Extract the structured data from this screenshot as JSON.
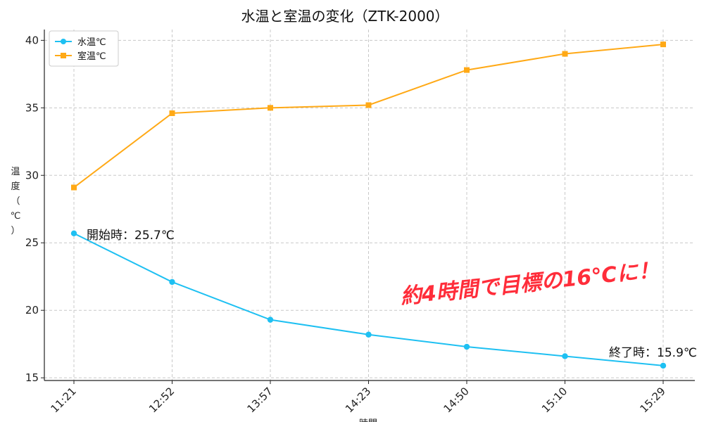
{
  "chart_data": {
    "type": "line",
    "title": "水温と室温の変化（ZTK-2000）",
    "xlabel": "時間",
    "ylabel": "温度（℃）",
    "categories": [
      "11:21",
      "12:52",
      "13:57",
      "14:23",
      "14:50",
      "15:10",
      "15:29"
    ],
    "ylim": [
      14.8,
      40.8
    ],
    "yticks": [
      15,
      20,
      25,
      30,
      35,
      40
    ],
    "grid": true,
    "legend_position": "top-left",
    "series": [
      {
        "name": "水温℃",
        "color": "#1ec0f2",
        "marker": "circle",
        "values": [
          25.7,
          22.1,
          19.3,
          18.2,
          17.3,
          16.6,
          15.9
        ]
      },
      {
        "name": "室温℃",
        "color": "#ffa916",
        "marker": "square",
        "values": [
          29.1,
          34.6,
          35.0,
          35.2,
          37.8,
          39.0,
          39.7
        ]
      }
    ],
    "annotations": [
      {
        "text": "開始時：25.7℃",
        "series": 0,
        "index": 0
      },
      {
        "text": "終了時：15.9℃",
        "series": 0,
        "index": 6
      }
    ],
    "callout": {
      "text": "約4時間で目標の16℃に！",
      "color": "#ff2d3a"
    }
  }
}
